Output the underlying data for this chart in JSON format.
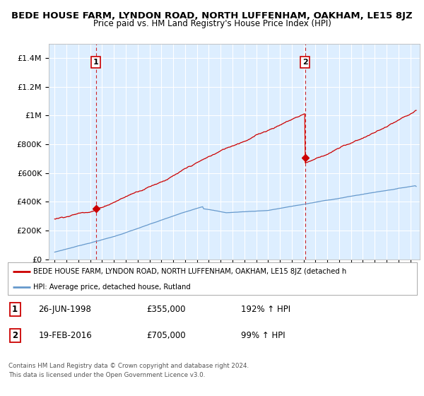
{
  "title": "BEDE HOUSE FARM, LYNDON ROAD, NORTH LUFFENHAM, OAKHAM, LE15 8JZ",
  "subtitle": "Price paid vs. HM Land Registry's House Price Index (HPI)",
  "title_fontsize": 9.5,
  "subtitle_fontsize": 8.5,
  "ylabel_ticks": [
    "£0",
    "£200K",
    "£400K",
    "£600K",
    "£800K",
    "£1M",
    "£1.2M",
    "£1.4M"
  ],
  "ytick_values": [
    0,
    200000,
    400000,
    600000,
    800000,
    1000000,
    1200000,
    1400000
  ],
  "ylim": [
    0,
    1500000
  ],
  "xlim_left": 1994.5,
  "xlim_right": 2025.8,
  "sale1_year": 1998.48,
  "sale1_price": 355000,
  "sale1_date": "26-JUN-1998",
  "sale1_label": "192% ↑ HPI",
  "sale2_year": 2016.13,
  "sale2_price": 705000,
  "sale2_date": "19-FEB-2016",
  "sale2_label": "99% ↑ HPI",
  "legend_line1": "BEDE HOUSE FARM, LYNDON ROAD, NORTH LUFFENHAM, OAKHAM, LE15 8JZ (detached h",
  "legend_line2": "HPI: Average price, detached house, Rutland",
  "footer1": "Contains HM Land Registry data © Crown copyright and database right 2024.",
  "footer2": "This data is licensed under the Open Government Licence v3.0.",
  "red_color": "#cc0000",
  "blue_color": "#6699cc",
  "bg_color": "#ffffff",
  "plot_bg_color": "#ddeeff",
  "grid_color": "#ffffff"
}
